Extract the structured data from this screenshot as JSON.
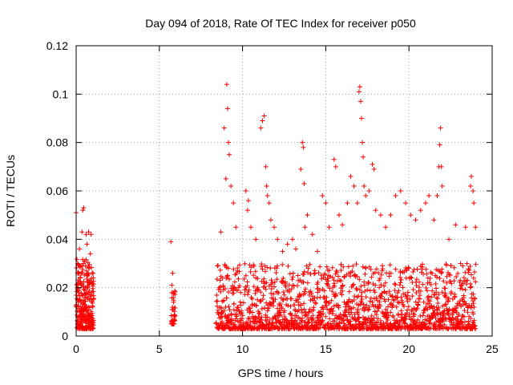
{
  "chart_data": {
    "type": "scatter",
    "title": "Day 094 of 2018, Rate Of TEC Index for receiver p050",
    "xlabel": "GPS time / hours",
    "ylabel": "ROTI / TECUs",
    "xlim": [
      0,
      25
    ],
    "ylim": [
      0,
      0.12
    ],
    "x_ticks": [
      0,
      5,
      10,
      15,
      20,
      25
    ],
    "x_tick_labels": [
      "0",
      "5",
      "10",
      "15",
      "20",
      "25"
    ],
    "y_ticks": [
      0,
      0.02,
      0.04,
      0.06,
      0.08,
      0.1,
      0.12
    ],
    "y_tick_labels": [
      "0",
      "0.02",
      "0.04",
      "0.06",
      "0.08",
      "0.1",
      "0.12"
    ],
    "grid": true,
    "marker": "+",
    "series": [
      {
        "name": "ROTI",
        "color": "#ff0000",
        "notes": "dense cloud: 0-1 h (0.005-0.035, spikes to 0.053), 5.7-6 h (0.005-0.02, one at 0.039), 8.4-24 h (0.003-0.03 baseline with spikes)",
        "points": [
          [
            0.0,
            0.051
          ],
          [
            0.05,
            0.012
          ],
          [
            0.1,
            0.03
          ],
          [
            0.15,
            0.018
          ],
          [
            0.2,
            0.036
          ],
          [
            0.25,
            0.024
          ],
          [
            0.3,
            0.014
          ],
          [
            0.35,
            0.043
          ],
          [
            0.4,
            0.052
          ],
          [
            0.45,
            0.053
          ],
          [
            0.5,
            0.031
          ],
          [
            0.55,
            0.02
          ],
          [
            0.6,
            0.042
          ],
          [
            0.65,
            0.038
          ],
          [
            0.7,
            0.026
          ],
          [
            0.75,
            0.043
          ],
          [
            0.8,
            0.015
          ],
          [
            0.85,
            0.034
          ],
          [
            0.9,
            0.042
          ],
          [
            0.95,
            0.018
          ],
          [
            1.0,
            0.012
          ],
          [
            5.7,
            0.039
          ],
          [
            5.75,
            0.021
          ],
          [
            5.8,
            0.026
          ],
          [
            5.85,
            0.014
          ],
          [
            5.9,
            0.008
          ],
          [
            8.7,
            0.043
          ],
          [
            8.9,
            0.086
          ],
          [
            9.0,
            0.065
          ],
          [
            9.05,
            0.104
          ],
          [
            9.1,
            0.094
          ],
          [
            9.15,
            0.08
          ],
          [
            9.2,
            0.075
          ],
          [
            9.3,
            0.062
          ],
          [
            9.45,
            0.055
          ],
          [
            9.6,
            0.045
          ],
          [
            10.2,
            0.06
          ],
          [
            10.3,
            0.052
          ],
          [
            10.35,
            0.056
          ],
          [
            10.5,
            0.045
          ],
          [
            10.8,
            0.04
          ],
          [
            11.1,
            0.086
          ],
          [
            11.2,
            0.089
          ],
          [
            11.3,
            0.091
          ],
          [
            11.4,
            0.07
          ],
          [
            11.45,
            0.062
          ],
          [
            11.5,
            0.058
          ],
          [
            11.6,
            0.055
          ],
          [
            11.7,
            0.048
          ],
          [
            11.9,
            0.045
          ],
          [
            12.1,
            0.04
          ],
          [
            12.4,
            0.035
          ],
          [
            12.7,
            0.038
          ],
          [
            13.0,
            0.04
          ],
          [
            13.2,
            0.036
          ],
          [
            13.5,
            0.069
          ],
          [
            13.6,
            0.08
          ],
          [
            13.65,
            0.078
          ],
          [
            13.7,
            0.063
          ],
          [
            13.75,
            0.045
          ],
          [
            13.9,
            0.05
          ],
          [
            14.2,
            0.042
          ],
          [
            14.5,
            0.035
          ],
          [
            14.8,
            0.058
          ],
          [
            15.0,
            0.055
          ],
          [
            15.2,
            0.045
          ],
          [
            15.5,
            0.073
          ],
          [
            15.6,
            0.07
          ],
          [
            15.8,
            0.05
          ],
          [
            16.0,
            0.046
          ],
          [
            16.3,
            0.055
          ],
          [
            16.5,
            0.066
          ],
          [
            16.7,
            0.062
          ],
          [
            16.9,
            0.055
          ],
          [
            17.0,
            0.101
          ],
          [
            17.05,
            0.103
          ],
          [
            17.1,
            0.097
          ],
          [
            17.15,
            0.09
          ],
          [
            17.2,
            0.08
          ],
          [
            17.25,
            0.074
          ],
          [
            17.3,
            0.062
          ],
          [
            17.4,
            0.058
          ],
          [
            17.6,
            0.06
          ],
          [
            17.8,
            0.071
          ],
          [
            17.9,
            0.069
          ],
          [
            18.0,
            0.052
          ],
          [
            18.3,
            0.05
          ],
          [
            18.6,
            0.045
          ],
          [
            18.9,
            0.05
          ],
          [
            19.2,
            0.058
          ],
          [
            19.5,
            0.06
          ],
          [
            19.8,
            0.055
          ],
          [
            20.1,
            0.05
          ],
          [
            20.4,
            0.048
          ],
          [
            20.7,
            0.052
          ],
          [
            21.0,
            0.055
          ],
          [
            21.2,
            0.058
          ],
          [
            21.5,
            0.048
          ],
          [
            21.7,
            0.058
          ],
          [
            21.8,
            0.07
          ],
          [
            21.85,
            0.079
          ],
          [
            21.9,
            0.086
          ],
          [
            21.95,
            0.07
          ],
          [
            22.0,
            0.062
          ],
          [
            22.4,
            0.04
          ],
          [
            22.8,
            0.046
          ],
          [
            23.1,
            0.03
          ],
          [
            23.4,
            0.045
          ],
          [
            23.7,
            0.062
          ],
          [
            23.75,
            0.066
          ],
          [
            23.85,
            0.06
          ],
          [
            23.9,
            0.055
          ],
          [
            24.0,
            0.045
          ]
        ]
      }
    ]
  }
}
